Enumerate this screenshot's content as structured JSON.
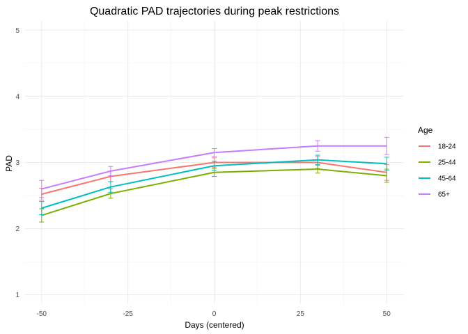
{
  "chart_data": {
    "type": "line",
    "title": "Quadratic PAD trajectories during peak restrictions",
    "xlabel": "Days (centered)",
    "ylabel": "PAD",
    "x": [
      -50,
      -30,
      0,
      30,
      50
    ],
    "xlim": [
      -55,
      55
    ],
    "ylim": [
      0.86,
      5.14
    ],
    "xticks": [
      -50,
      -25,
      0,
      25,
      50
    ],
    "xtick_labels": [
      "-50",
      "-25",
      "0",
      "25",
      "50"
    ],
    "yticks": [
      1,
      2,
      3,
      4,
      5
    ],
    "ytick_labels": [
      "1",
      "2",
      "3",
      "4",
      "5"
    ],
    "grid": true,
    "legend": {
      "title": "Age",
      "position": "right"
    },
    "series": [
      {
        "name": "18-24",
        "color": "#F8766D",
        "values": [
          2.52,
          2.79,
          3.0,
          3.0,
          2.85
        ],
        "err_low": [
          2.43,
          2.71,
          2.93,
          2.91,
          2.73
        ],
        "err_high": [
          2.61,
          2.87,
          3.07,
          3.09,
          2.97
        ]
      },
      {
        "name": "25-44",
        "color": "#7CAE00",
        "values": [
          2.2,
          2.53,
          2.85,
          2.9,
          2.8
        ],
        "err_low": [
          2.1,
          2.46,
          2.79,
          2.84,
          2.7
        ],
        "err_high": [
          2.3,
          2.6,
          2.91,
          2.96,
          2.9
        ]
      },
      {
        "name": "45-64",
        "color": "#00BFC4",
        "values": [
          2.31,
          2.63,
          2.95,
          3.04,
          2.98
        ],
        "err_low": [
          2.21,
          2.55,
          2.88,
          2.97,
          2.88
        ],
        "err_high": [
          2.41,
          2.71,
          3.02,
          3.11,
          3.08
        ]
      },
      {
        "name": "65+",
        "color": "#C77CFF",
        "values": [
          2.6,
          2.87,
          3.15,
          3.25,
          3.25
        ],
        "err_low": [
          2.47,
          2.8,
          3.09,
          3.17,
          3.12
        ],
        "err_high": [
          2.73,
          2.94,
          3.21,
          3.33,
          3.38
        ]
      }
    ]
  }
}
